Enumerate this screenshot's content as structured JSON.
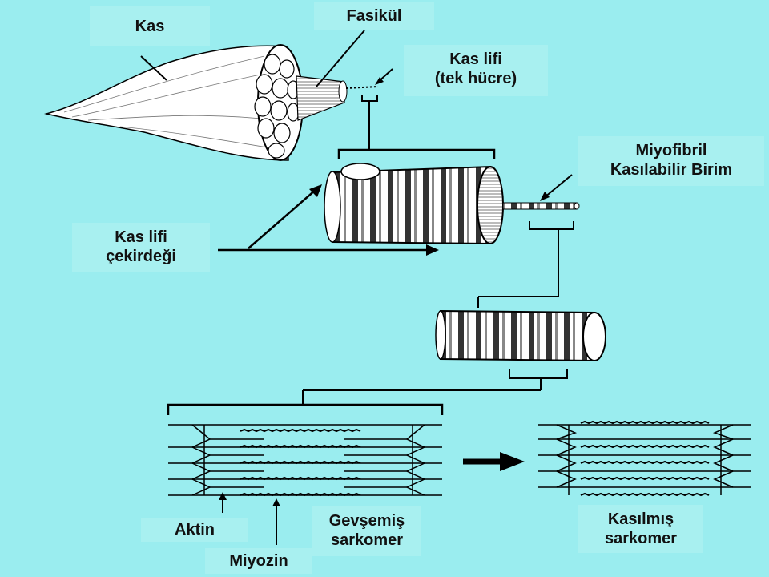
{
  "labels": {
    "kas": "Kas",
    "fasikul": "Fasikül",
    "kas_lifi_line1": "Kas lifi",
    "kas_lifi_line2": "(tek hücre)",
    "miyofibril_line1": "Miyofibril",
    "miyofibril_line2": "Kasılabilir Birim",
    "cekirdek_line1": "Kas lifi",
    "cekirdek_line2": "çekirdeği",
    "aktin": "Aktin",
    "miyozin": "Miyozin",
    "gevsemis_line1": "Gevşemiş",
    "gevsemis_line2": "sarkomer",
    "kasilmis_line1": "Kasılmış",
    "kasilmis_line2": "sarkomer"
  },
  "colors": {
    "background": "#9AEDEF",
    "ink": "#000000",
    "tissue": "#FFFFFF"
  }
}
